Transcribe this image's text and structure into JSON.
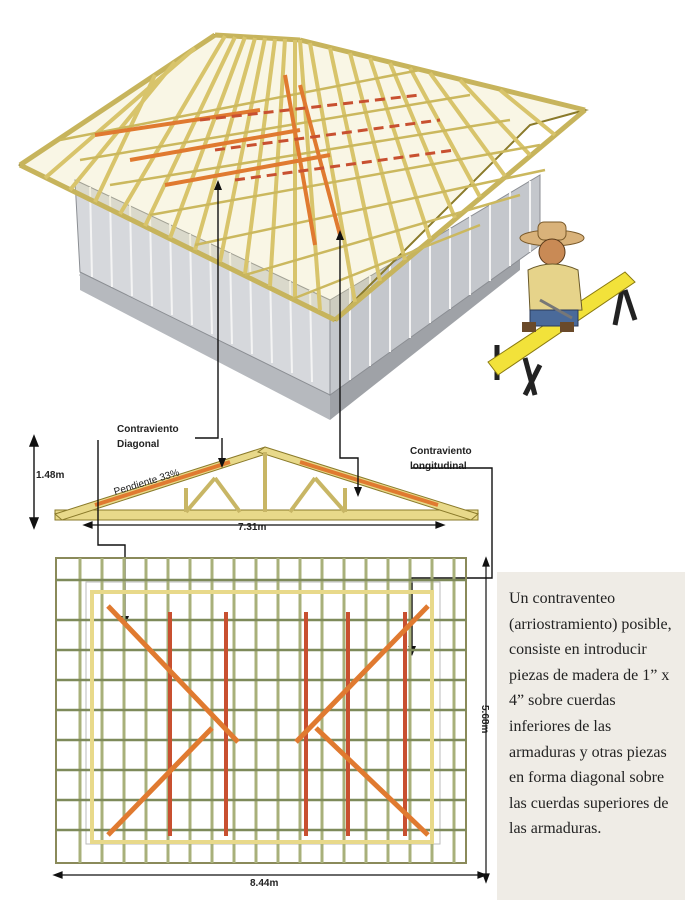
{
  "labels": {
    "diagonal_brace": "Contraviento\nDiagonal",
    "longitudinal_brace": "Contraviento\nlongitudinal",
    "slope": "Pendiente 33%",
    "height": "1.48m",
    "truss_span": "7.31m",
    "plan_width": "8.44m",
    "plan_depth": "5.68m"
  },
  "note_text": "Un contraventeo (arriostramiento) posible, consiste en introducir piezas de madera de 1” x 4” sobre cuerdas inferiores de las armaduras y otras piezas en forma diagonal sobre las cuerdas superiores de las armaduras.",
  "colors": {
    "timber": "#e8d98a",
    "timber_edge": "#8a7a2a",
    "brace_orange": "#e07a30",
    "brace_red": "#c85030",
    "wall": "#cfd2d6",
    "roof_shadow": "#b9bcc1"
  }
}
